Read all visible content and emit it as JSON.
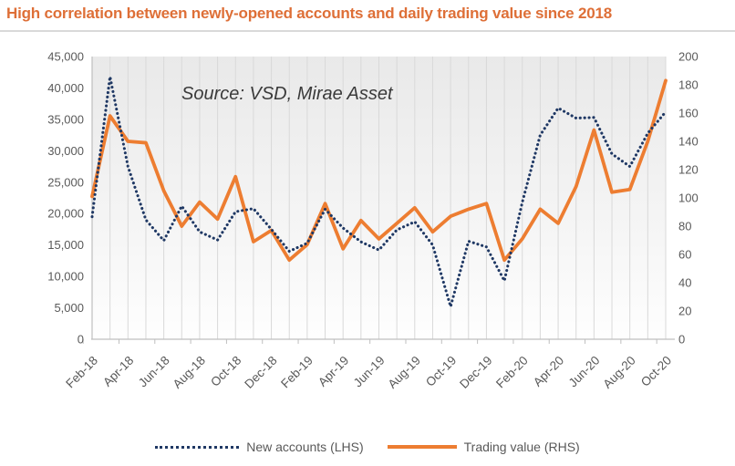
{
  "header": {
    "title": "High correlation between newly-opened accounts and daily trading value since 2018"
  },
  "annotation": {
    "source_note": "Source: VSD, Mirae Asset"
  },
  "colors": {
    "title": "#DE6F37",
    "new_accounts_line": "#1F3864",
    "trading_value_line": "#ED7D31",
    "gridline": "#D9D9D9",
    "axis": "#BFBFBF",
    "axis_label": "#595959",
    "plot_bg_top": "#E9E9E9",
    "plot_bg_bottom": "#FEFEFE"
  },
  "chart_data": {
    "type": "line",
    "title": "High correlation between newly-opened accounts and daily trading value since 2018",
    "categories": [
      "Feb-18",
      "Mar-18",
      "Apr-18",
      "May-18",
      "Jun-18",
      "Jul-18",
      "Aug-18",
      "Sep-18",
      "Oct-18",
      "Nov-18",
      "Dec-18",
      "Jan-19",
      "Feb-19",
      "Mar-19",
      "Apr-19",
      "May-19",
      "Jun-19",
      "Jul-19",
      "Aug-19",
      "Sep-19",
      "Oct-19",
      "Nov-19",
      "Dec-19",
      "Jan-20",
      "Feb-20",
      "Mar-20",
      "Apr-20",
      "May-20",
      "Jun-20",
      "Jul-20",
      "Aug-20",
      "Sep-20",
      "Oct-20"
    ],
    "x_tick_labels": [
      "Feb-18",
      "Apr-18",
      "Jun-18",
      "Aug-18",
      "Oct-18",
      "Dec-18",
      "Feb-19",
      "Apr-19",
      "Jun-19",
      "Aug-19",
      "Oct-19",
      "Dec-19",
      "Feb-20",
      "Apr-20",
      "Jun-20",
      "Aug-20",
      "Oct-20"
    ],
    "series": [
      {
        "name": "New accounts (LHS)",
        "axis": "left",
        "style": "dotted",
        "color": "#1F3864",
        "values": [
          19500,
          41800,
          27500,
          19000,
          15700,
          21200,
          17100,
          15800,
          20300,
          20800,
          17500,
          14000,
          15300,
          20700,
          17700,
          15500,
          14200,
          17400,
          18700,
          15000,
          5200,
          15600,
          14700,
          9300,
          21800,
          32500,
          36800,
          35200,
          35300,
          29500,
          27500,
          32800,
          36200
        ]
      },
      {
        "name": "Trading value (RHS)",
        "axis": "right",
        "style": "solid",
        "color": "#ED7D31",
        "values": [
          101,
          158,
          140,
          139,
          105,
          80,
          97,
          85,
          115,
          69,
          77,
          56,
          67,
          96,
          64,
          84,
          71,
          82,
          93,
          76,
          87,
          92,
          96,
          56,
          71,
          92,
          82,
          108,
          148,
          104,
          106,
          140,
          183
        ]
      }
    ],
    "left_axis": {
      "min": 0,
      "max": 45000,
      "step": 5000,
      "tick_labels": [
        "0",
        "5,000",
        "10,000",
        "15,000",
        "20,000",
        "25,000",
        "30,000",
        "35,000",
        "40,000",
        "45,000"
      ]
    },
    "right_axis": {
      "min": 0,
      "max": 200,
      "step": 20,
      "tick_labels": [
        "0",
        "20",
        "40",
        "60",
        "80",
        "100",
        "120",
        "140",
        "160",
        "180",
        "200"
      ]
    },
    "grid": "vertical-monthly",
    "legend_position": "bottom"
  }
}
